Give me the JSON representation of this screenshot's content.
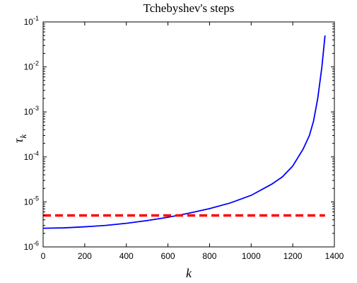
{
  "chart_data": {
    "type": "line",
    "title": "Tchebyshev's steps",
    "xlabel": "k",
    "ylabel": "τ_k",
    "xlim": [
      0,
      1400
    ],
    "ylim_log10": [
      -6,
      -1
    ],
    "y_scale": "log",
    "grid": false,
    "legend": "none",
    "x_ticks": [
      "0",
      "200",
      "400",
      "600",
      "800",
      "1000",
      "1200",
      "1400"
    ],
    "y_ticks": [
      {
        "base": "10",
        "exp": "-6"
      },
      {
        "base": "10",
        "exp": "-5"
      },
      {
        "base": "10",
        "exp": "-4"
      },
      {
        "base": "10",
        "exp": "-3"
      },
      {
        "base": "10",
        "exp": "-2"
      },
      {
        "base": "10",
        "exp": "-1"
      }
    ],
    "series": [
      {
        "style": "solid",
        "color": "#0000ff",
        "x": [
          0,
          100,
          200,
          300,
          400,
          500,
          600,
          700,
          800,
          900,
          1000,
          1100,
          1150,
          1200,
          1250,
          1280,
          1300,
          1320,
          1340,
          1355
        ],
        "y": [
          2.6e-06,
          2.65e-06,
          2.8e-06,
          3e-06,
          3.35e-06,
          3.85e-06,
          4.55e-06,
          5.6e-06,
          7.1e-06,
          9.5e-06,
          1.4e-05,
          2.5e-05,
          3.6e-05,
          6.3e-05,
          0.00015,
          0.0003,
          0.00063,
          0.002,
          0.01,
          0.05
        ]
      },
      {
        "style": "dashed",
        "color": "#ff0000",
        "x": [
          0,
          1355
        ],
        "y": [
          5e-06,
          5e-06
        ]
      }
    ]
  }
}
